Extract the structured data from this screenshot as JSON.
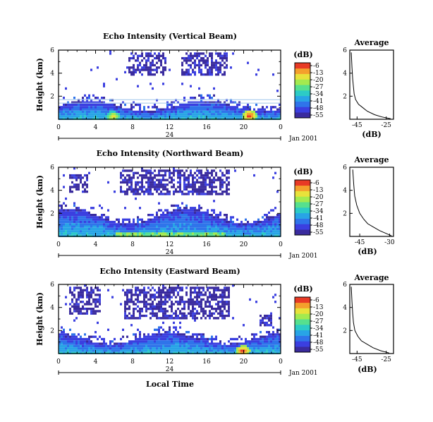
{
  "colormap": [
    "#3a2b9e",
    "#3b3fe0",
    "#2f74ea",
    "#28a4e6",
    "#2ccbc6",
    "#56e08e",
    "#a3ea4f",
    "#e8e23b",
    "#f4a02c",
    "#e83a25"
  ],
  "colorbar": {
    "unit_label": "(dB)",
    "ticks": [
      "-6",
      "-13",
      "-20",
      "-27",
      "-34",
      "-41",
      "-48",
      "-55"
    ]
  },
  "x_axis": {
    "ticks": [
      "0",
      "4",
      "8",
      "12",
      "16",
      "20",
      "0"
    ],
    "day_label": "24",
    "date_label": "Jan 2001",
    "label": "Local Time"
  },
  "y_axis": {
    "label": "Height (km)",
    "ticks": [
      "6",
      "4",
      "2"
    ]
  },
  "chart_data": [
    {
      "type": "heatmap",
      "title": "Echo Intensity (Vertical Beam)",
      "xlabel": "",
      "ylabel": "Height (km)",
      "xlim": [
        0,
        24
      ],
      "ylim": [
        0,
        6
      ],
      "zlim": [
        -55,
        -6
      ],
      "zlabel": "(dB)",
      "features": {
        "surface_layer_top_km": 1.5,
        "surface_layer_intensity_db": -34,
        "hot_spots": [
          {
            "hour": 5.8,
            "height_km": 0.3,
            "db": -15
          },
          {
            "hour": 20.5,
            "height_km": 0.4,
            "db": -6
          }
        ],
        "upper_echo_regions": [
          {
            "hours": [
              7.5,
              11.5
            ],
            "heights_km": [
              3.8,
              5.8
            ]
          },
          {
            "hours": [
              13.2,
              18.2
            ],
            "heights_km": [
              3.8,
              5.8
            ]
          }
        ],
        "line_artifacts_km": [
          1.4,
          1.7
        ]
      },
      "profile": {
        "title": "Average",
        "xlabel": "(dB)",
        "xticks": [
          "-45",
          "-25"
        ],
        "yticks": [
          "6",
          "4",
          "2"
        ],
        "xlim": [
          -50,
          -20
        ],
        "ylim": [
          0,
          6
        ],
        "points": [
          [
            -49,
            5.8
          ],
          [
            -48.5,
            4.5
          ],
          [
            -48,
            3.5
          ],
          [
            -47.5,
            2.8
          ],
          [
            -47,
            2.2
          ],
          [
            -46,
            1.7
          ],
          [
            -44,
            1.3
          ],
          [
            -41,
            1.0
          ],
          [
            -38,
            0.7
          ],
          [
            -33,
            0.4
          ],
          [
            -28,
            0.2
          ],
          [
            -22,
            0.05
          ]
        ]
      }
    },
    {
      "type": "heatmap",
      "title": "Echo Intensity (Northward Beam)",
      "xlabel": "",
      "ylabel": "Height (km)",
      "xlim": [
        0,
        24
      ],
      "ylim": [
        0,
        6
      ],
      "zlim": [
        -55,
        -6
      ],
      "zlabel": "(dB)",
      "features": {
        "surface_layer_top_km": 2.2,
        "surface_layer_intensity_db": -34,
        "hot_spots": [
          {
            "hour": 11.0,
            "height_km": 0.1,
            "db": -20
          }
        ],
        "upper_echo_regions": [
          {
            "hours": [
              1.0,
              3.0
            ],
            "heights_km": [
              3.8,
              5.5
            ]
          },
          {
            "hours": [
              6.5,
              18.5
            ],
            "heights_km": [
              3.6,
              5.8
            ]
          }
        ],
        "line_artifacts_km": []
      },
      "profile": {
        "title": "Average",
        "xlabel": "(dB)",
        "xticks": [
          "-45",
          "-30"
        ],
        "yticks": [
          "6",
          "4",
          "2"
        ],
        "xlim": [
          -50,
          -28
        ],
        "ylim": [
          0,
          6
        ],
        "points": [
          [
            -48.5,
            5.8
          ],
          [
            -48,
            4.5
          ],
          [
            -47.5,
            3.5
          ],
          [
            -46.5,
            2.7
          ],
          [
            -45,
            2.0
          ],
          [
            -43,
            1.5
          ],
          [
            -41,
            1.1
          ],
          [
            -38,
            0.8
          ],
          [
            -35,
            0.5
          ],
          [
            -31,
            0.2
          ],
          [
            -29,
            0.05
          ]
        ]
      }
    },
    {
      "type": "heatmap",
      "title": "Echo Intensity (Eastward Beam)",
      "xlabel": "Local Time",
      "ylabel": "Height (km)",
      "xlim": [
        0,
        24
      ],
      "ylim": [
        0,
        6
      ],
      "zlim": [
        -55,
        -6
      ],
      "zlabel": "(dB)",
      "features": {
        "surface_layer_top_km": 1.7,
        "surface_layer_intensity_db": -34,
        "hot_spots": [
          {
            "hour": 19.8,
            "height_km": 0.3,
            "db": -6
          }
        ],
        "upper_echo_regions": [
          {
            "hours": [
              1.0,
              4.5
            ],
            "heights_km": [
              3.5,
              5.8
            ]
          },
          {
            "hours": [
              7.0,
              18.5
            ],
            "heights_km": [
              3.0,
              5.8
            ]
          },
          {
            "hours": [
              21.5,
              23.0
            ],
            "heights_km": [
              2.5,
              3.5
            ]
          }
        ],
        "line_artifacts_km": []
      },
      "profile": {
        "title": "Average",
        "xlabel": "(dB)",
        "xticks": [
          "-45",
          "-25"
        ],
        "yticks": [
          "6",
          "4",
          "2"
        ],
        "xlim": [
          -50,
          -20
        ],
        "ylim": [
          0,
          6
        ],
        "points": [
          [
            -49,
            5.8
          ],
          [
            -48.5,
            4.5
          ],
          [
            -48,
            3.5
          ],
          [
            -47.5,
            2.7
          ],
          [
            -46.5,
            2.0
          ],
          [
            -44.5,
            1.5
          ],
          [
            -42,
            1.1
          ],
          [
            -38,
            0.8
          ],
          [
            -34,
            0.5
          ],
          [
            -29,
            0.25
          ],
          [
            -23,
            0.05
          ]
        ]
      }
    }
  ]
}
